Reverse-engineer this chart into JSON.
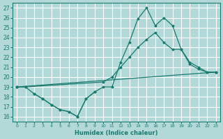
{
  "background_color": "#b2d8d8",
  "grid_color": "#ffffff",
  "line_color": "#1a7a6e",
  "xlabel": "Humidex (Indice chaleur)",
  "ylim": [
    15.5,
    27.5
  ],
  "xlim": [
    -0.5,
    23.5
  ],
  "yticks": [
    16,
    17,
    18,
    19,
    20,
    21,
    22,
    23,
    24,
    25,
    26,
    27
  ],
  "xticks": [
    0,
    1,
    2,
    3,
    4,
    5,
    6,
    7,
    8,
    9,
    10,
    11,
    12,
    13,
    14,
    15,
    16,
    17,
    18,
    19,
    20,
    21,
    22,
    23
  ],
  "series": [
    {
      "x": [
        0,
        1,
        2,
        3,
        4,
        5,
        6,
        7,
        8,
        9,
        10,
        11,
        12,
        13,
        14,
        15,
        16,
        17,
        18,
        19,
        20,
        21,
        22,
        23
      ],
      "y": [
        19,
        19,
        18.3,
        17.8,
        17.2,
        16.7,
        16.5,
        16.0,
        17.8,
        18.5,
        19.0,
        19.0,
        21.5,
        23.5,
        25.9,
        27.0,
        25.2,
        26.0,
        25.2,
        22.8,
        21.3,
        20.8,
        20.5,
        20.5
      ]
    },
    {
      "x": [
        0,
        23
      ],
      "y": [
        19,
        20.5
      ]
    },
    {
      "x": [
        0,
        1,
        10,
        11,
        12,
        13,
        14,
        15,
        16,
        17,
        18,
        19,
        20,
        21,
        22,
        23
      ],
      "y": [
        19,
        19,
        19.5,
        20.0,
        21.0,
        22.0,
        23.0,
        23.8,
        24.5,
        23.5,
        22.8,
        22.8,
        21.5,
        21.0,
        20.5,
        20.5
      ]
    },
    {
      "x": [
        2,
        3,
        4,
        5,
        6,
        7,
        8,
        9
      ],
      "y": [
        18.3,
        17.8,
        17.2,
        16.7,
        16.5,
        16.0,
        17.8,
        18.5
      ]
    }
  ]
}
